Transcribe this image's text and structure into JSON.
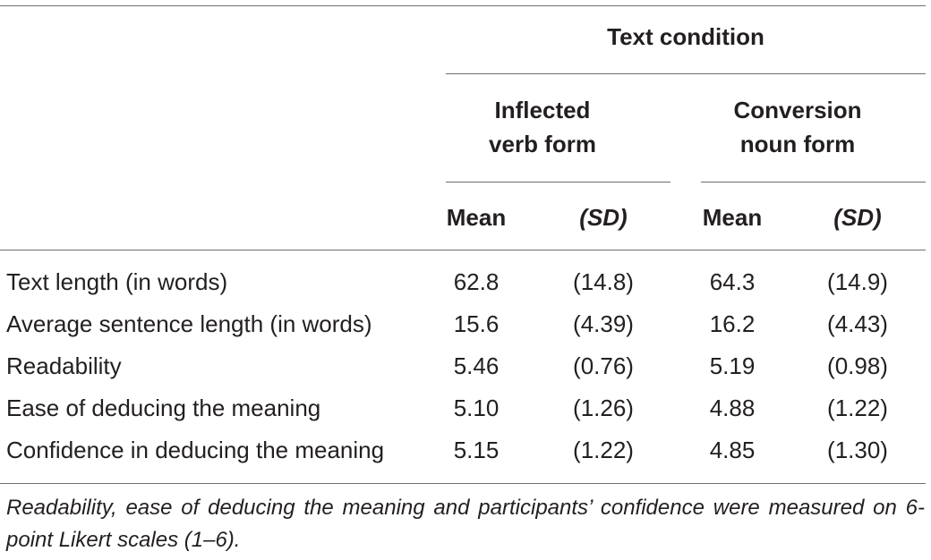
{
  "table": {
    "group_header": "Text condition",
    "subgroups": [
      {
        "line1": "Inflected",
        "line2": "verb form"
      },
      {
        "line1": "Conversion",
        "line2": "noun form"
      }
    ],
    "stat_headers": [
      "Mean",
      "(SD)",
      "Mean",
      "(SD)"
    ],
    "rows": [
      {
        "label": "Text length (in words)",
        "values": [
          "62.8",
          "(14.8)",
          "64.3",
          "(14.9)"
        ]
      },
      {
        "label": "Average sentence length (in words)",
        "values": [
          "15.6",
          "(4.39)",
          "16.2",
          "(4.43)"
        ]
      },
      {
        "label": "Readability",
        "values": [
          "5.46",
          "(0.76)",
          "5.19",
          "(0.98)"
        ]
      },
      {
        "label": "Ease of deducing the meaning",
        "values": [
          "5.10",
          "(1.26)",
          "4.88",
          "(1.22)"
        ]
      },
      {
        "label": "Confidence in deducing the meaning",
        "values": [
          "5.15",
          "(1.22)",
          "4.85",
          "(1.30)"
        ]
      }
    ],
    "note": "Readability, ease of deducing the meaning and participants’ confidence were measured on 6-point Likert scales (1–6)."
  }
}
